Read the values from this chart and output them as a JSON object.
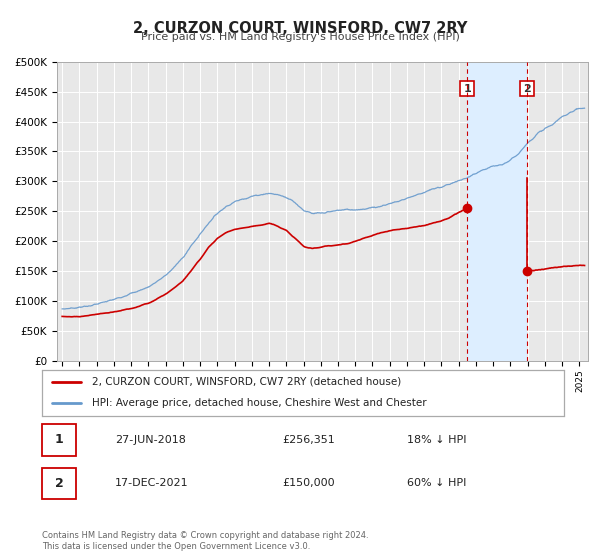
{
  "title": "2, CURZON COURT, WINSFORD, CW7 2RY",
  "subtitle": "Price paid vs. HM Land Registry's House Price Index (HPI)",
  "background_color": "#ffffff",
  "plot_bg_color": "#e8e8e8",
  "grid_color": "#ffffff",
  "hpi_color": "#6699cc",
  "price_color": "#cc0000",
  "shade_color": "#ddeeff",
  "sale1_date": 2018.49,
  "sale1_price": 256351,
  "sale2_date": 2021.96,
  "sale2_price": 150000,
  "legend_line1": "2, CURZON COURT, WINSFORD, CW7 2RY (detached house)",
  "legend_line2": "HPI: Average price, detached house, Cheshire West and Chester",
  "table_row1": [
    "1",
    "27-JUN-2018",
    "£256,351",
    "18% ↓ HPI"
  ],
  "table_row2": [
    "2",
    "17-DEC-2021",
    "£150,000",
    "60% ↓ HPI"
  ],
  "footnote1": "Contains HM Land Registry data © Crown copyright and database right 2024.",
  "footnote2": "This data is licensed under the Open Government Licence v3.0.",
  "ylim": [
    0,
    500000
  ],
  "yticks": [
    0,
    50000,
    100000,
    150000,
    200000,
    250000,
    300000,
    350000,
    400000,
    450000,
    500000
  ],
  "ytick_labels": [
    "£0",
    "£50K",
    "£100K",
    "£150K",
    "£200K",
    "£250K",
    "£300K",
    "£350K",
    "£400K",
    "£450K",
    "£500K"
  ],
  "xlim_start": 1994.7,
  "xlim_end": 2025.5,
  "hpi_anchors_x": [
    1995,
    1995.5,
    1996,
    1996.5,
    1997,
    1997.5,
    1998,
    1998.5,
    1999,
    1999.5,
    2000,
    2000.5,
    2001,
    2001.5,
    2002,
    2002.5,
    2003,
    2003.5,
    2004,
    2004.5,
    2005,
    2005.5,
    2006,
    2006.5,
    2007,
    2007.5,
    2008,
    2008.5,
    2009,
    2009.5,
    2010,
    2010.5,
    2011,
    2011.5,
    2012,
    2012.5,
    2013,
    2013.5,
    2014,
    2014.5,
    2015,
    2015.5,
    2016,
    2016.5,
    2017,
    2017.5,
    2018,
    2018.5,
    2019,
    2019.5,
    2020,
    2020.5,
    2021,
    2021.5,
    2022,
    2022.5,
    2023,
    2023.5,
    2024,
    2024.5,
    2025
  ],
  "hpi_anchors_y": [
    87000,
    88500,
    90000,
    92000,
    95000,
    99000,
    103000,
    108000,
    113000,
    118000,
    124000,
    133000,
    143000,
    157000,
    173000,
    193000,
    212000,
    231000,
    247000,
    258000,
    266000,
    271000,
    275000,
    278000,
    280000,
    278000,
    274000,
    265000,
    252000,
    246000,
    247000,
    249000,
    252000,
    253000,
    253000,
    254000,
    256000,
    259000,
    263000,
    267000,
    272000,
    277000,
    282000,
    287000,
    291000,
    296000,
    301000,
    306000,
    313000,
    320000,
    325000,
    328000,
    335000,
    348000,
    364000,
    378000,
    388000,
    396000,
    408000,
    416000,
    422000
  ],
  "price_anchors_x": [
    1995,
    1995.5,
    1996,
    1996.5,
    1997,
    1997.5,
    1998,
    1998.5,
    1999,
    1999.5,
    2000,
    2000.5,
    2001,
    2001.5,
    2002,
    2002.5,
    2003,
    2003.5,
    2004,
    2004.5,
    2005,
    2005.5,
    2006,
    2006.5,
    2007,
    2007.5,
    2008,
    2008.5,
    2009,
    2009.5,
    2010,
    2010.5,
    2011,
    2011.5,
    2012,
    2012.5,
    2013,
    2013.5,
    2014,
    2014.5,
    2015,
    2015.5,
    2016,
    2016.5,
    2017,
    2017.5,
    2018,
    2018.49,
    2021.96,
    2022.5,
    2023,
    2023.5,
    2024,
    2024.5,
    2025
  ],
  "price_anchors_y": [
    75000,
    74000,
    74500,
    76000,
    78000,
    80000,
    82000,
    85000,
    88000,
    92000,
    97000,
    104000,
    112000,
    122000,
    134000,
    152000,
    170000,
    190000,
    205000,
    215000,
    220000,
    223000,
    225000,
    227000,
    230000,
    225000,
    218000,
    205000,
    192000,
    188000,
    190000,
    192000,
    194000,
    196000,
    200000,
    205000,
    210000,
    215000,
    218000,
    220000,
    222000,
    224000,
    227000,
    230000,
    234000,
    240000,
    248000,
    256351,
    150000,
    152000,
    154000,
    156000,
    158000,
    159000,
    160000
  ]
}
